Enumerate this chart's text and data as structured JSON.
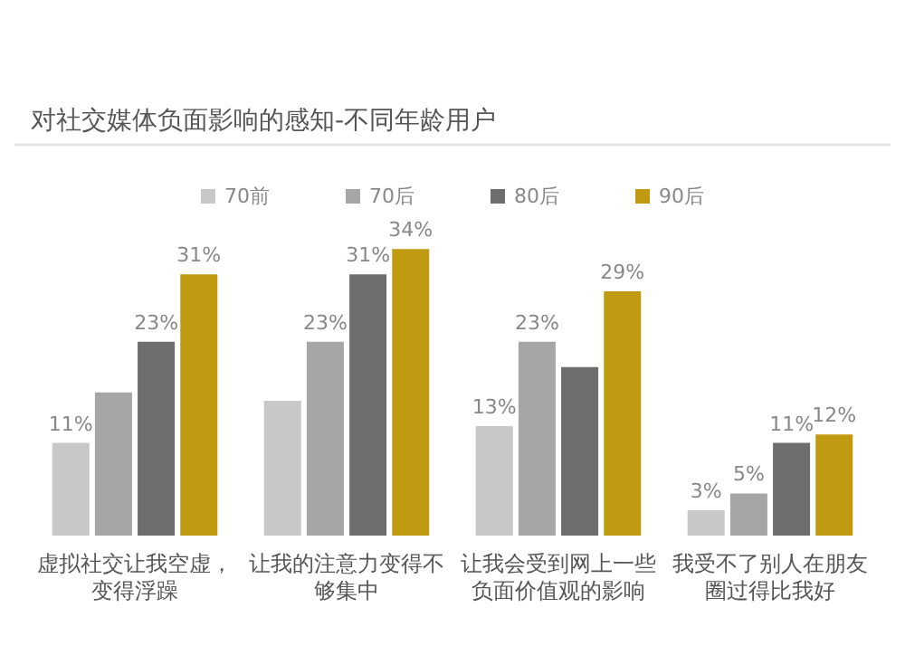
{
  "chart_data": {
    "type": "bar",
    "title": "对社交媒体负面影响的感知-不同年龄用户",
    "categories": [
      "虚拟社交让我空虚，变得浮躁",
      "让我的注意力变得不够集中",
      "让我会受到网上一些负面价值观的影响",
      "我受不了别人在朋友圈过得比我好"
    ],
    "series": [
      {
        "name": "70前",
        "color": "#c8c8c8",
        "values": [
          11,
          16,
          13,
          3
        ],
        "value_labels": [
          "11%",
          null,
          "13%",
          "3%"
        ]
      },
      {
        "name": "70后",
        "color": "#a6a6a6",
        "values": [
          17,
          23,
          23,
          5
        ],
        "value_labels": [
          null,
          "23%",
          "23%",
          "5%"
        ]
      },
      {
        "name": "80后",
        "color": "#6e6e6e",
        "values": [
          23,
          31,
          20,
          11
        ],
        "value_labels": [
          "23%",
          "31%",
          null,
          "11%"
        ]
      },
      {
        "name": "90后",
        "color": "#c09a10",
        "values": [
          31,
          34,
          29,
          12
        ],
        "value_labels": [
          "31%",
          "34%",
          "29%",
          "12%"
        ]
      }
    ],
    "legend": "top"
  }
}
